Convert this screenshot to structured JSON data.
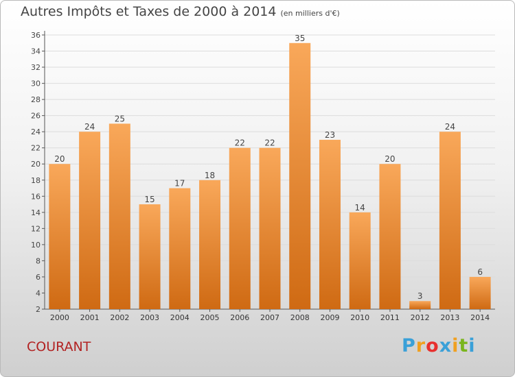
{
  "title": {
    "main": "Autres Impôts et Taxes de 2000 à 2014",
    "unit": "(en milliers d'€)"
  },
  "location": "COURANT",
  "logo": {
    "letters": [
      "P",
      "r",
      "o",
      "x",
      "i",
      "t",
      "i"
    ],
    "colors": [
      "#3aa0d8",
      "#f0a020",
      "#e8302e",
      "#3aa0d8",
      "#f0a020",
      "#7ab51d",
      "#3aa0d8"
    ]
  },
  "colors": {
    "bar_light": "#f9a85a",
    "bar_dark": "#cf6a13",
    "axis": "#555555",
    "grid": "#dcdcdc"
  },
  "chart_data": {
    "type": "bar",
    "categories": [
      "2000",
      "2001",
      "2002",
      "2003",
      "2004",
      "2005",
      "2006",
      "2007",
      "2008",
      "2009",
      "2010",
      "2011",
      "2012",
      "2013",
      "2014"
    ],
    "values": [
      20,
      24,
      25,
      15,
      17,
      18,
      22,
      22,
      35,
      23,
      14,
      20,
      3,
      24,
      6
    ],
    "ylim": [
      2,
      36
    ],
    "yticks": [
      2,
      4,
      6,
      8,
      10,
      12,
      14,
      16,
      18,
      20,
      22,
      24,
      26,
      28,
      30,
      32,
      34,
      36
    ],
    "grid": true,
    "legend": "none",
    "data_labels": true
  }
}
